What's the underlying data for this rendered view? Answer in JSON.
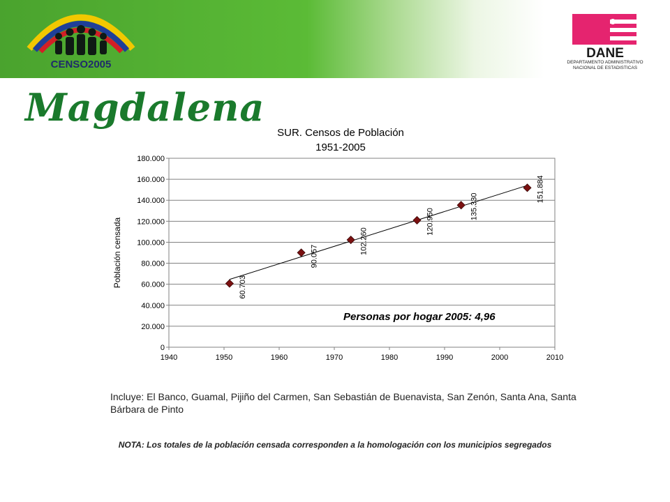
{
  "header": {
    "censo_logo_text": "CENSO2005",
    "dane_logo_text": "DANE",
    "dane_line1": "DEPARTAMENTO ADMINISTRATIVO",
    "dane_line2": "NACIONAL DE ESTADISTICAS",
    "colors": {
      "banner_green": "#4aa32e",
      "dane_magenta": "#e5246f",
      "flag_yellow": "#f2c800",
      "flag_blue": "#1f3f98",
      "flag_red": "#d21f26"
    }
  },
  "page_title": "Magdalena",
  "chart_data": {
    "type": "scatter",
    "title_line1": "SUR. Censos de Población",
    "title_line2": "1951-2005",
    "xlabel": "",
    "ylabel": "Población censada",
    "xlim": [
      1940,
      2010
    ],
    "ylim": [
      0,
      180000
    ],
    "x_ticks": [
      "1940",
      "1950",
      "1960",
      "1970",
      "1980",
      "1990",
      "2000",
      "2010"
    ],
    "y_ticks": [
      "0",
      "20.000",
      "40.000",
      "60.000",
      "80.000",
      "100.000",
      "120.000",
      "140.000",
      "160.000",
      "180.000"
    ],
    "grid": "horizontal",
    "trendline": "linear",
    "marker_color": "#7b1111",
    "points": [
      {
        "x": 1951,
        "y": 60703,
        "label": "60.703"
      },
      {
        "x": 1964,
        "y": 90057,
        "label": "90.057"
      },
      {
        "x": 1973,
        "y": 102260,
        "label": "102.260"
      },
      {
        "x": 1985,
        "y": 120950,
        "label": "120.950"
      },
      {
        "x": 1993,
        "y": 135330,
        "label": "135.330"
      },
      {
        "x": 2005,
        "y": 151884,
        "label": "151.884"
      }
    ],
    "annotation": "Personas por hogar 2005: 4,96"
  },
  "includes_text": "Incluye: El Banco, Guamal, Pijiño del Carmen, San Sebastián de Buenavista, San Zenón, Santa Ana, Santa Bárbara de Pinto",
  "note_text": "NOTA: Los totales de la población censada corresponden a la homologación con los municipios segregados"
}
